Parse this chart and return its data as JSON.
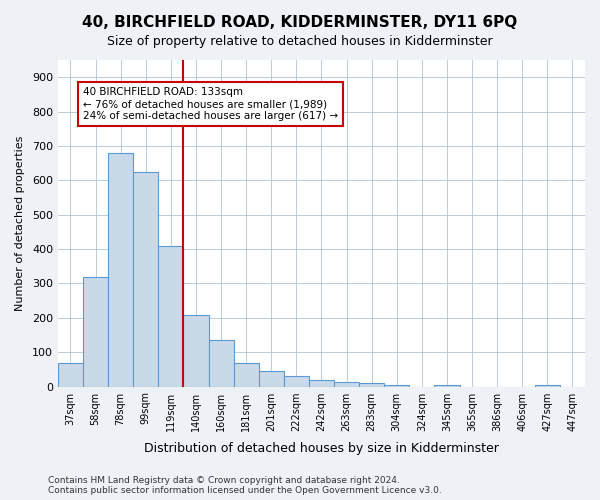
{
  "title": "40, BIRCHFIELD ROAD, KIDDERMINSTER, DY11 6PQ",
  "subtitle": "Size of property relative to detached houses in Kidderminster",
  "xlabel": "Distribution of detached houses by size in Kidderminster",
  "ylabel": "Number of detached properties",
  "bin_labels": [
    "37sqm",
    "58sqm",
    "78sqm",
    "99sqm",
    "119sqm",
    "140sqm",
    "160sqm",
    "181sqm",
    "201sqm",
    "222sqm",
    "242sqm",
    "263sqm",
    "283sqm",
    "304sqm",
    "324sqm",
    "345sqm",
    "365sqm",
    "386sqm",
    "406sqm",
    "427sqm",
    "447sqm"
  ],
  "bar_heights": [
    68,
    318,
    678,
    625,
    410,
    208,
    135,
    67,
    45,
    32,
    20,
    13,
    10,
    3,
    0,
    5,
    0,
    0,
    0,
    5,
    0
  ],
  "bar_color": "#c9d9e8",
  "bar_edge_color": "#5b9bd5",
  "vline_color": "#cc0000",
  "vline_pos": 4.5,
  "annotation_line1": "40 BIRCHFIELD ROAD: 133sqm",
  "annotation_line2": "← 76% of detached houses are smaller (1,989)",
  "annotation_line3": "24% of semi-detached houses are larger (617) →",
  "annotation_box_color": "#ffffff",
  "annotation_box_edge": "#cc0000",
  "ylim": [
    0,
    950
  ],
  "yticks": [
    0,
    100,
    200,
    300,
    400,
    500,
    600,
    700,
    800,
    900
  ],
  "footer": "Contains HM Land Registry data © Crown copyright and database right 2024.\nContains public sector information licensed under the Open Government Licence v3.0.",
  "bg_color": "#eef2f7",
  "plot_bg_color": "#ffffff"
}
